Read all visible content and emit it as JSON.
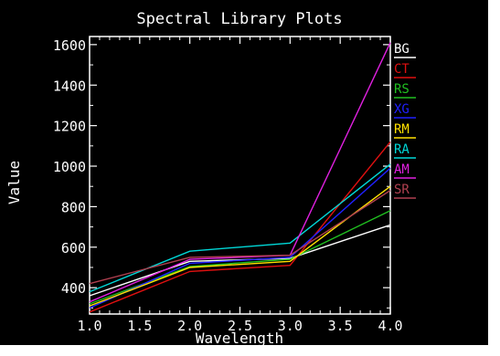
{
  "chart_data": {
    "type": "line",
    "title": "Spectral Library Plots",
    "xlabel": "Wavelength",
    "ylabel": "Value",
    "xlim": [
      1.0,
      4.0
    ],
    "ylim": [
      270,
      1640
    ],
    "x": [
      1.0,
      2.0,
      3.0,
      4.0
    ],
    "xticks": [
      "1.0",
      "1.5",
      "2.0",
      "2.5",
      "3.0",
      "3.5",
      "4.0"
    ],
    "yticks": [
      {
        "value": 400,
        "label": "400"
      },
      {
        "value": 600,
        "label": "600"
      },
      {
        "value": 800,
        "label": "800"
      },
      {
        "value": 1000,
        "label": "1000"
      },
      {
        "value": 1200,
        "label": "1200"
      },
      {
        "value": 1400,
        "label": "1400"
      },
      {
        "value": 1600,
        "label": "1600"
      }
    ],
    "legend_position": "right",
    "series": [
      {
        "name": "BG",
        "color": "#ffffff",
        "values": [
          360,
          530,
          545,
          710
        ]
      },
      {
        "name": "CT",
        "color": "#e01010",
        "values": [
          280,
          480,
          510,
          1120
        ]
      },
      {
        "name": "RS",
        "color": "#20c020",
        "values": [
          320,
          505,
          540,
          780
        ]
      },
      {
        "name": "XG",
        "color": "#2020ff",
        "values": [
          300,
          520,
          550,
          990
        ]
      },
      {
        "name": "RM",
        "color": "#ffe000",
        "values": [
          310,
          500,
          530,
          900
        ]
      },
      {
        "name": "RA",
        "color": "#00d8d8",
        "values": [
          380,
          580,
          620,
          1010
        ]
      },
      {
        "name": "AM",
        "color": "#e020e0",
        "values": [
          330,
          540,
          560,
          1610
        ]
      },
      {
        "name": "SR",
        "color": "#b04050",
        "values": [
          420,
          550,
          560,
          880
        ]
      }
    ]
  }
}
